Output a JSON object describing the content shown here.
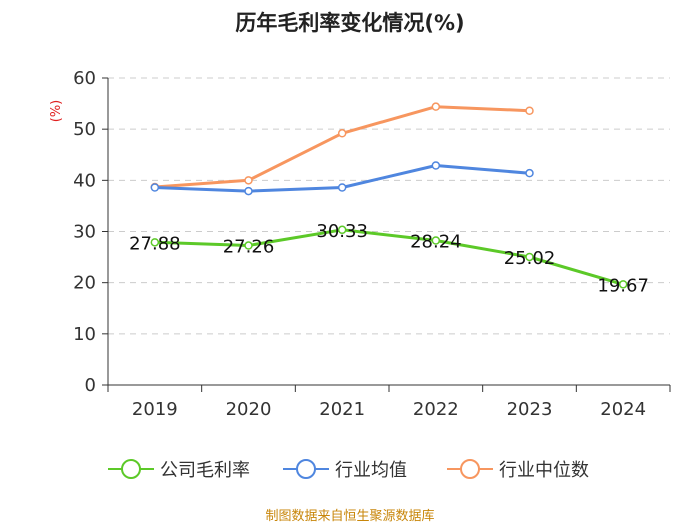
{
  "chart_data": {
    "type": "line",
    "title": "历年毛利率变化情况(%)",
    "ylabel": "(%)",
    "xlabel": "",
    "categories": [
      "2019",
      "2020",
      "2021",
      "2022",
      "2023",
      "2024"
    ],
    "ylim": [
      0,
      60
    ],
    "yticks": [
      0,
      10,
      20,
      30,
      40,
      50,
      60
    ],
    "grid": true,
    "legend_position": "bottom",
    "series": [
      {
        "name": "公司毛利率",
        "color": "#5cc928",
        "values": [
          27.88,
          27.26,
          30.33,
          28.24,
          25.02,
          19.67
        ],
        "labels": [
          "27.88",
          "27.26",
          "30.33",
          "28.24",
          "25.02",
          "19.67"
        ]
      },
      {
        "name": "行业均值",
        "color": "#4f86df",
        "values": [
          38.6,
          37.9,
          38.6,
          42.9,
          41.4,
          null
        ]
      },
      {
        "name": "行业中位数",
        "color": "#f7965f",
        "values": [
          38.7,
          40.0,
          49.2,
          54.4,
          53.6,
          null
        ]
      }
    ]
  },
  "source": "制图数据来自恒生聚源数据库"
}
